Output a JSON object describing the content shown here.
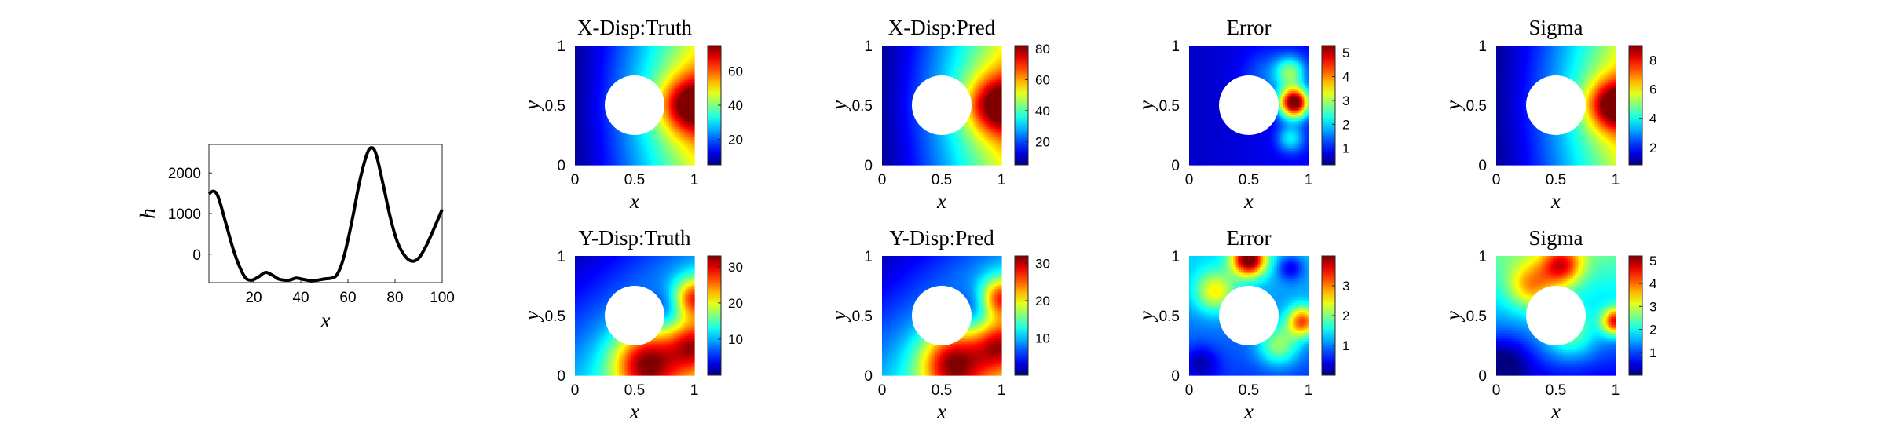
{
  "chart_data": [
    {
      "type": "line",
      "xlabel": "x",
      "ylabel": "h",
      "xlim": [
        1,
        100
      ],
      "ylim": [
        -700,
        2700
      ],
      "xticks": [
        20,
        40,
        60,
        80,
        100
      ],
      "yticks": [
        0,
        1000,
        2000
      ],
      "x": [
        1,
        3,
        5,
        8,
        12,
        16,
        19,
        22,
        25,
        28,
        31,
        35,
        38,
        41,
        44,
        47,
        50,
        53,
        55,
        57,
        59,
        62,
        65,
        68,
        70,
        72,
        75,
        78,
        81,
        84,
        87,
        90,
        93,
        96,
        100
      ],
      "y": [
        1480,
        1550,
        1400,
        800,
        0,
        -540,
        -640,
        -560,
        -450,
        -520,
        -620,
        -640,
        -590,
        -620,
        -650,
        -640,
        -610,
        -590,
        -530,
        -300,
        100,
        900,
        1800,
        2450,
        2620,
        2450,
        1700,
        900,
        300,
        -30,
        -170,
        -100,
        180,
        560,
        1100
      ]
    },
    {
      "type": "heatmap",
      "title": "X-Disp:Truth",
      "xlabel": "x",
      "ylabel": "y",
      "xticks": [
        "0",
        "0.5",
        "1"
      ],
      "yticks": [
        "0",
        "0.5",
        "1"
      ],
      "field": "x-displacement",
      "colormap": "jet",
      "crange": [
        5,
        75
      ],
      "cbar_ticks": [
        20,
        40,
        60
      ],
      "hole": {
        "center": [
          0.5,
          0.5
        ],
        "radius": 0.25
      }
    },
    {
      "type": "heatmap",
      "title": "X-Disp:Pred",
      "xlabel": "x",
      "ylabel": "y",
      "xticks": [
        "0",
        "0.5",
        "1"
      ],
      "yticks": [
        "0",
        "0.5",
        "1"
      ],
      "field": "x-displacement",
      "colormap": "jet",
      "crange": [
        5,
        82
      ],
      "cbar_ticks": [
        20,
        40,
        60,
        80
      ],
      "hole": {
        "center": [
          0.5,
          0.5
        ],
        "radius": 0.25
      }
    },
    {
      "type": "heatmap",
      "title": "Error",
      "xlabel": "x",
      "ylabel": "y",
      "xticks": [
        "0",
        "0.5",
        "1"
      ],
      "yticks": [
        "0",
        "0.5",
        "1"
      ],
      "field": "x-error",
      "colormap": "jet",
      "crange": [
        0.3,
        5.3
      ],
      "cbar_ticks": [
        1,
        2,
        3,
        4,
        5
      ],
      "hole": {
        "center": [
          0.5,
          0.5
        ],
        "radius": 0.25
      }
    },
    {
      "type": "heatmap",
      "title": "Sigma",
      "xlabel": "x",
      "ylabel": "y",
      "xticks": [
        "0",
        "0.5",
        "1"
      ],
      "yticks": [
        "0",
        "0.5",
        "1"
      ],
      "field": "x-sigma",
      "colormap": "jet",
      "crange": [
        0.8,
        9
      ],
      "cbar_ticks": [
        2,
        4,
        6,
        8
      ],
      "hole": {
        "center": [
          0.5,
          0.5
        ],
        "radius": 0.25
      }
    },
    {
      "type": "heatmap",
      "title": "Y-Disp:Truth",
      "xlabel": "x",
      "ylabel": "y",
      "xticks": [
        "0",
        "0.5",
        "1"
      ],
      "yticks": [
        "0",
        "0.5",
        "1"
      ],
      "field": "y-displacement",
      "colormap": "jet",
      "crange": [
        0,
        33
      ],
      "cbar_ticks": [
        10,
        20,
        30
      ],
      "hole": {
        "center": [
          0.5,
          0.5
        ],
        "radius": 0.25
      }
    },
    {
      "type": "heatmap",
      "title": "Y-Disp:Pred",
      "xlabel": "x",
      "ylabel": "y",
      "xticks": [
        "0",
        "0.5",
        "1"
      ],
      "yticks": [
        "0",
        "0.5",
        "1"
      ],
      "field": "y-displacement",
      "colormap": "jet",
      "crange": [
        0,
        32
      ],
      "cbar_ticks": [
        10,
        20,
        30
      ],
      "hole": {
        "center": [
          0.5,
          0.5
        ],
        "radius": 0.25
      }
    },
    {
      "type": "heatmap",
      "title": "Error",
      "xlabel": "x",
      "ylabel": "y",
      "xticks": [
        "0",
        "0.5",
        "1"
      ],
      "yticks": [
        "0",
        "0.5",
        "1"
      ],
      "field": "y-error",
      "colormap": "jet",
      "crange": [
        0,
        4
      ],
      "cbar_ticks": [
        1,
        2,
        3
      ],
      "hole": {
        "center": [
          0.5,
          0.5
        ],
        "radius": 0.25
      }
    },
    {
      "type": "heatmap",
      "title": "Sigma",
      "xlabel": "x",
      "ylabel": "y",
      "xticks": [
        "0",
        "0.5",
        "1"
      ],
      "yticks": [
        "0",
        "0.5",
        "1"
      ],
      "field": "y-sigma",
      "colormap": "jet",
      "crange": [
        0,
        5.2
      ],
      "cbar_ticks": [
        1,
        2,
        3,
        4,
        5
      ],
      "hole": {
        "center": [
          0.5,
          0.5
        ],
        "radius": 0.25
      }
    }
  ]
}
